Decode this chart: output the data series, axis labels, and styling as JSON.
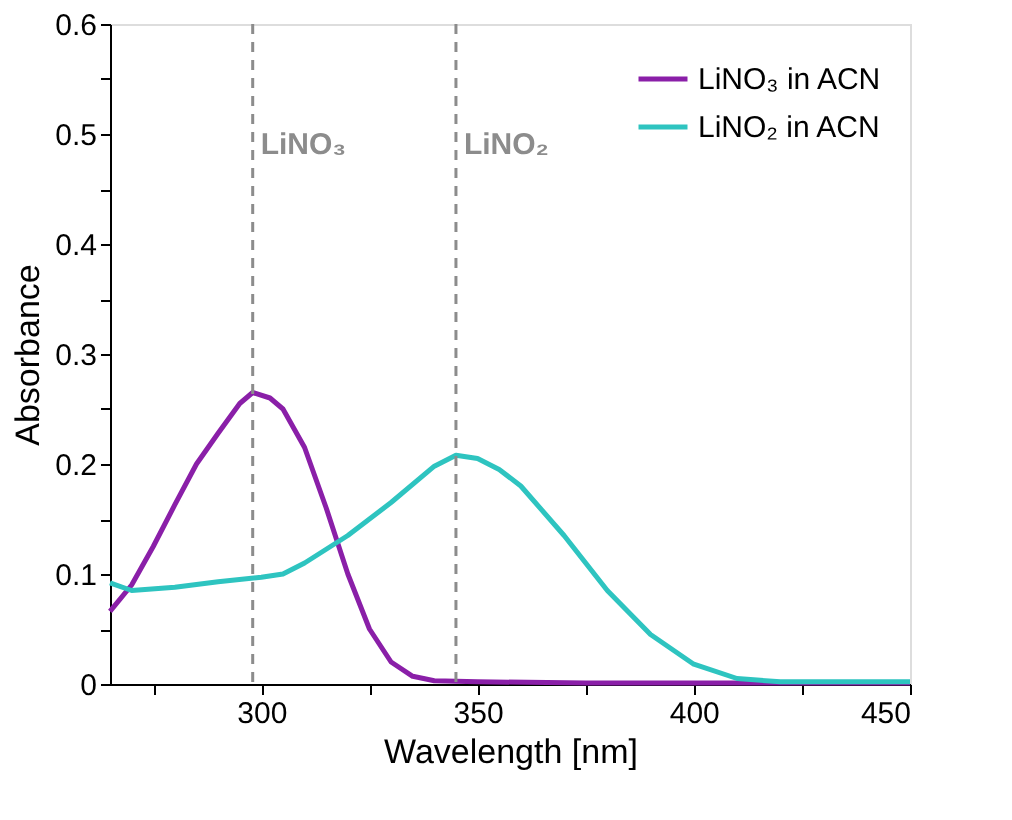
{
  "chart_data": {
    "type": "line",
    "xlabel": "Wavelength [nm]",
    "ylabel": "Absorbance",
    "xlim": [
      265,
      450
    ],
    "ylim": [
      0,
      0.6
    ],
    "xticks": [
      {
        "value": 275,
        "label": null
      },
      300,
      {
        "value": 325,
        "label": null
      },
      350,
      {
        "value": 375,
        "label": null
      },
      400,
      {
        "value": 425,
        "label": null
      },
      450
    ],
    "yticks": [
      0,
      {
        "value": 0.05,
        "label": null
      },
      0.1,
      {
        "value": 0.15,
        "label": null
      },
      0.2,
      {
        "value": 0.25,
        "label": null
      },
      0.3,
      {
        "value": 0.35,
        "label": null
      },
      0.4,
      {
        "value": 0.45,
        "label": null
      },
      0.5,
      {
        "value": 0.55,
        "label": null
      },
      0.6
    ],
    "grid": false,
    "legend": "top right",
    "line_style": "solid",
    "marker": "none",
    "ref_lines": [
      {
        "axis": "x",
        "value": 298,
        "label": "LiNO₃",
        "color": "#8c8c8c",
        "line_style": "dashed"
      },
      {
        "axis": "x",
        "value": 345,
        "label": "LiNO₂",
        "color": "#8c8c8c",
        "line_style": "dashed"
      }
    ],
    "series": [
      {
        "name": "LiNO₃ in ACN",
        "color": "#8a1fa8",
        "x": [
          265,
          270,
          275,
          280,
          285,
          290,
          295,
          298,
          302,
          305,
          310,
          315,
          320,
          325,
          330,
          335,
          340,
          350,
          375,
          400,
          450
        ],
        "values": [
          0.066,
          0.09,
          0.125,
          0.163,
          0.2,
          0.228,
          0.255,
          0.265,
          0.26,
          0.25,
          0.215,
          0.16,
          0.1,
          0.05,
          0.02,
          0.007,
          0.003,
          0.002,
          0.001,
          0.001,
          0.001
        ]
      },
      {
        "name": "LiNO₂ in ACN",
        "color": "#2ec4c0",
        "x": [
          265,
          270,
          280,
          290,
          300,
          305,
          310,
          320,
          330,
          340,
          345,
          350,
          355,
          360,
          370,
          380,
          390,
          400,
          410,
          420,
          450
        ],
        "values": [
          0.092,
          0.085,
          0.088,
          0.093,
          0.097,
          0.1,
          0.11,
          0.135,
          0.165,
          0.198,
          0.208,
          0.205,
          0.195,
          0.18,
          0.135,
          0.085,
          0.045,
          0.018,
          0.005,
          0.002,
          0.002
        ]
      }
    ]
  }
}
